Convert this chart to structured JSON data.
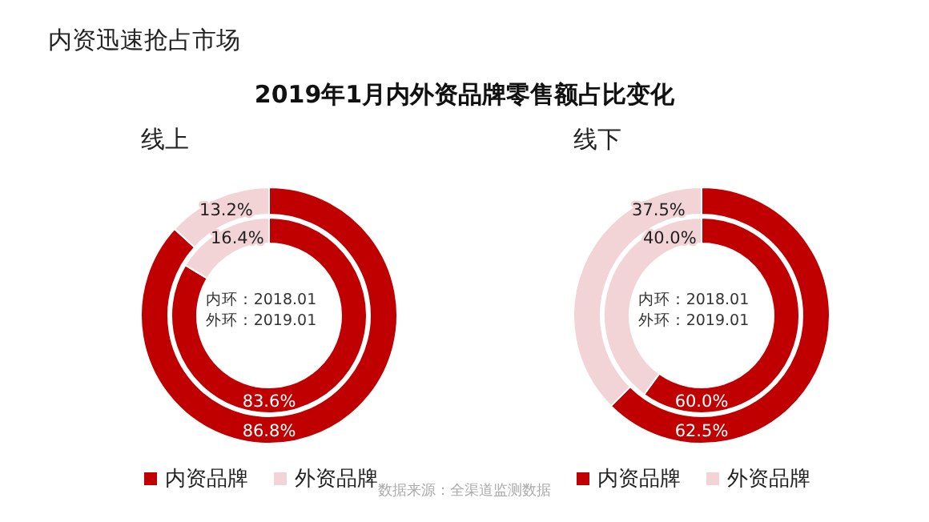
{
  "chart_data": [
    {
      "type": "other",
      "title": "内资迅速抢占市场",
      "subtitle": "2019年1月内外资品牌零售额占比变化",
      "annotations": [
        "数据来源：全渠道监测数据"
      ]
    },
    {
      "type": "donut",
      "title": "线上",
      "categories": [
        "内资品牌",
        "外资品牌"
      ],
      "colors": [
        "#c00000",
        "#f2d4d6"
      ],
      "legend": "bottom",
      "annotations": [
        "内环：2018.01",
        "外环：2019.01"
      ],
      "series": [
        {
          "values": [
            83.6,
            16.4
          ],
          "value_labels": [
            "83.6%",
            "16.4%"
          ]
        },
        {
          "values": [
            86.8,
            13.2
          ],
          "value_labels": [
            "86.8%",
            "13.2%"
          ]
        }
      ]
    },
    {
      "type": "donut",
      "title": "线下",
      "categories": [
        "内资品牌",
        "外资品牌"
      ],
      "colors": [
        "#c00000",
        "#f2d4d6"
      ],
      "legend": "bottom",
      "annotations": [
        "内环：2018.01",
        "外环：2019.01"
      ],
      "series": [
        {
          "values": [
            60.0,
            40.0
          ],
          "value_labels": [
            "60.0%",
            "40.0%"
          ]
        },
        {
          "values": [
            62.5,
            37.5
          ],
          "value_labels": [
            "62.5%",
            "37.5%"
          ]
        }
      ]
    }
  ]
}
